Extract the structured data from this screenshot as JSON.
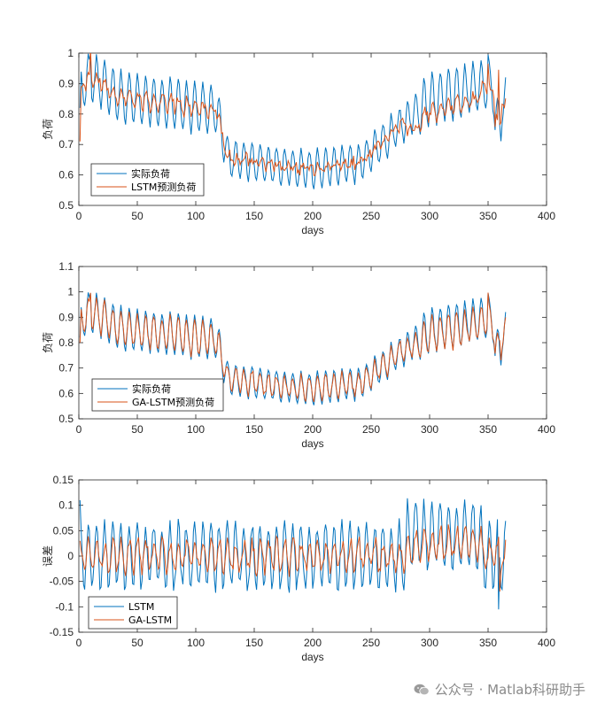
{
  "watermark": {
    "text": "公众号 · Matlab科研助手",
    "icon": "wechat-icon"
  },
  "colors": {
    "actual": "#0072BD",
    "predicted": "#D95319",
    "axis": "#262626"
  },
  "chart_data": [
    {
      "type": "line",
      "title": "",
      "xlabel": "days",
      "ylabel": "负荷",
      "xlim": [
        0,
        400
      ],
      "ylim": [
        0.5,
        1.0
      ],
      "xticks": [
        0,
        50,
        100,
        150,
        200,
        250,
        300,
        350,
        400
      ],
      "yticks": [
        0.5,
        0.6,
        0.7,
        0.8,
        0.9,
        1.0
      ],
      "ytick_labels": [
        "0.5",
        "0.6",
        "0.7",
        "0.8",
        "0.9",
        "1"
      ],
      "legend": [
        "实际负荷",
        "LSTM预测负荷"
      ],
      "legend_location": "bottom-left",
      "series": [
        {
          "name": "实际负荷",
          "color": "#0072BD",
          "kind": "actual"
        },
        {
          "name": "LSTM预测负荷",
          "color": "#D95319",
          "kind": "lstm"
        }
      ],
      "x_range_days": [
        1,
        365
      ],
      "y_summary": {
        "actual_min": 0.53,
        "actual_max": 1.0,
        "trend": "high (~0.9) in winter, low (~0.62) around day 200, rising back to ~0.95 by day 350"
      }
    },
    {
      "type": "line",
      "title": "",
      "xlabel": "days",
      "ylabel": "负荷",
      "xlim": [
        0,
        400
      ],
      "ylim": [
        0.5,
        1.1
      ],
      "xticks": [
        0,
        50,
        100,
        150,
        200,
        250,
        300,
        350,
        400
      ],
      "yticks": [
        0.5,
        0.6,
        0.7,
        0.8,
        0.9,
        1.0,
        1.1
      ],
      "ytick_labels": [
        "0.5",
        "0.6",
        "0.7",
        "0.8",
        "0.9",
        "1",
        "1.1"
      ],
      "legend": [
        "实际负荷",
        "GA-LSTM预测负荷"
      ],
      "legend_location": "bottom-left",
      "series": [
        {
          "name": "实际负荷",
          "color": "#0072BD",
          "kind": "actual"
        },
        {
          "name": "GA-LSTM预测负荷",
          "color": "#D95319",
          "kind": "galstm"
        }
      ],
      "x_range_days": [
        1,
        365
      ]
    },
    {
      "type": "line",
      "title": "",
      "xlabel": "days",
      "ylabel": "误差",
      "xlim": [
        0,
        400
      ],
      "ylim": [
        -0.15,
        0.15
      ],
      "xticks": [
        0,
        50,
        100,
        150,
        200,
        250,
        300,
        350,
        400
      ],
      "yticks": [
        -0.15,
        -0.1,
        -0.05,
        0,
        0.05,
        0.1,
        0.15
      ],
      "ytick_labels": [
        "-0.15",
        "-0.1",
        "-0.05",
        "0",
        "0.05",
        "0.1",
        "0.15"
      ],
      "legend": [
        "LSTM",
        "GA-LSTM"
      ],
      "legend_location": "bottom-left",
      "series": [
        {
          "name": "LSTM",
          "color": "#0072BD",
          "kind": "err_lstm"
        },
        {
          "name": "GA-LSTM",
          "color": "#D95319",
          "kind": "err_galstm"
        }
      ],
      "x_range_days": [
        1,
        365
      ],
      "y_summary": {
        "lstm_error_range": [
          -0.1,
          0.105
        ],
        "galstm_error_range": [
          -0.07,
          0.065
        ]
      }
    }
  ]
}
